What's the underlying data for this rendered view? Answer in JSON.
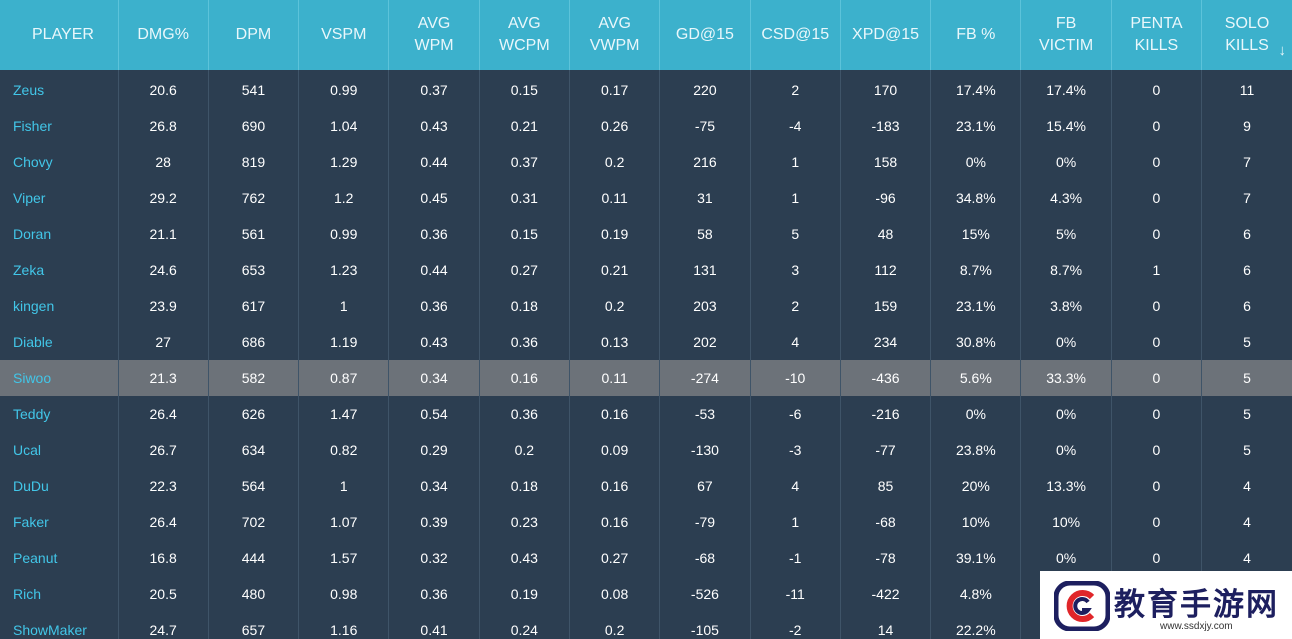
{
  "headers": [
    [
      "PLAYER"
    ],
    [
      "DMG%"
    ],
    [
      "DPM"
    ],
    [
      "VSPM"
    ],
    [
      "AVG",
      "WPM"
    ],
    [
      "AVG",
      "WCPM"
    ],
    [
      "AVG",
      "VWPM"
    ],
    [
      "GD@15"
    ],
    [
      "CSD@15"
    ],
    [
      "XPD@15"
    ],
    [
      "FB %"
    ],
    [
      "FB",
      "VICTIM"
    ],
    [
      "PENTA",
      "KILLS"
    ],
    [
      "SOLO",
      "KILLS"
    ]
  ],
  "sort_indicator": "↓",
  "highlight_row": 8,
  "rows": [
    [
      "Zeus",
      "20.6",
      "541",
      "0.99",
      "0.37",
      "0.15",
      "0.17",
      "220",
      "2",
      "170",
      "17.4%",
      "17.4%",
      "0",
      "11"
    ],
    [
      "Fisher",
      "26.8",
      "690",
      "1.04",
      "0.43",
      "0.21",
      "0.26",
      "-75",
      "-4",
      "-183",
      "23.1%",
      "15.4%",
      "0",
      "9"
    ],
    [
      "Chovy",
      "28",
      "819",
      "1.29",
      "0.44",
      "0.37",
      "0.2",
      "216",
      "1",
      "158",
      "0%",
      "0%",
      "0",
      "7"
    ],
    [
      "Viper",
      "29.2",
      "762",
      "1.2",
      "0.45",
      "0.31",
      "0.11",
      "31",
      "1",
      "-96",
      "34.8%",
      "4.3%",
      "0",
      "7"
    ],
    [
      "Doran",
      "21.1",
      "561",
      "0.99",
      "0.36",
      "0.15",
      "0.19",
      "58",
      "5",
      "48",
      "15%",
      "5%",
      "0",
      "6"
    ],
    [
      "Zeka",
      "24.6",
      "653",
      "1.23",
      "0.44",
      "0.27",
      "0.21",
      "131",
      "3",
      "112",
      "8.7%",
      "8.7%",
      "1",
      "6"
    ],
    [
      "kingen",
      "23.9",
      "617",
      "1",
      "0.36",
      "0.18",
      "0.2",
      "203",
      "2",
      "159",
      "23.1%",
      "3.8%",
      "0",
      "6"
    ],
    [
      "Diable",
      "27",
      "686",
      "1.19",
      "0.43",
      "0.36",
      "0.13",
      "202",
      "4",
      "234",
      "30.8%",
      "0%",
      "0",
      "5"
    ],
    [
      "Siwoo",
      "21.3",
      "582",
      "0.87",
      "0.34",
      "0.16",
      "0.11",
      "-274",
      "-10",
      "-436",
      "5.6%",
      "33.3%",
      "0",
      "5"
    ],
    [
      "Teddy",
      "26.4",
      "626",
      "1.47",
      "0.54",
      "0.36",
      "0.16",
      "-53",
      "-6",
      "-216",
      "0%",
      "0%",
      "0",
      "5"
    ],
    [
      "Ucal",
      "26.7",
      "634",
      "0.82",
      "0.29",
      "0.2",
      "0.09",
      "-130",
      "-3",
      "-77",
      "23.8%",
      "0%",
      "0",
      "5"
    ],
    [
      "DuDu",
      "22.3",
      "564",
      "1",
      "0.34",
      "0.18",
      "0.16",
      "67",
      "4",
      "85",
      "20%",
      "13.3%",
      "0",
      "4"
    ],
    [
      "Faker",
      "26.4",
      "702",
      "1.07",
      "0.39",
      "0.23",
      "0.16",
      "-79",
      "1",
      "-68",
      "10%",
      "10%",
      "0",
      "4"
    ],
    [
      "Peanut",
      "16.8",
      "444",
      "1.57",
      "0.32",
      "0.43",
      "0.27",
      "-68",
      "-1",
      "-78",
      "39.1%",
      "0%",
      "0",
      "4"
    ],
    [
      "Rich",
      "20.5",
      "480",
      "0.98",
      "0.36",
      "0.19",
      "0.08",
      "-526",
      "-11",
      "-422",
      "4.8%",
      "",
      "",
      ""
    ],
    [
      "ShowMaker",
      "24.7",
      "657",
      "1.16",
      "0.41",
      "0.24",
      "0.2",
      "-105",
      "-2",
      "14",
      "22.2%",
      "",
      "",
      ""
    ]
  ],
  "watermark": {
    "text": "教育手游网",
    "url": "www.ssdxjy.com",
    "logo_color": "#1d1f5f",
    "accent_color": "#e0262a"
  }
}
